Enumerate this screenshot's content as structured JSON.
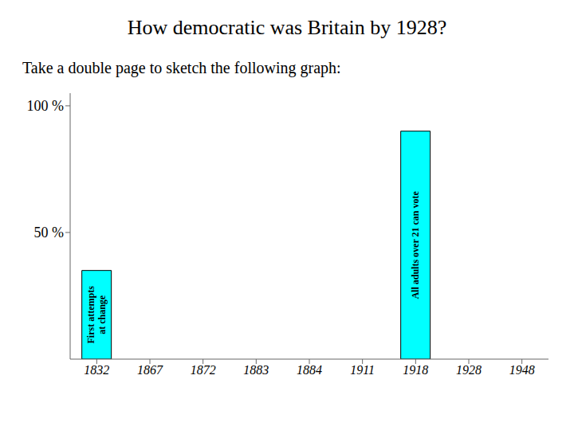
{
  "chart_data": {
    "type": "bar",
    "title": "How democratic was Britain by 1928?",
    "subtitle": "Take a double page to sketch the following graph:",
    "categories": [
      "1832",
      "1867",
      "1872",
      "1883",
      "1884",
      "1911",
      "1918",
      "1928",
      "1948"
    ],
    "values": [
      35,
      null,
      null,
      null,
      null,
      null,
      90,
      null,
      null
    ],
    "annotations": [
      {
        "category": "1832",
        "text": "First attempts\nat change"
      },
      {
        "category": "1918",
        "text": "All adults over 21 can vote"
      }
    ],
    "color": "#00ffff",
    "ylim": [
      0,
      105
    ],
    "yticks": [
      {
        "value": 50,
        "label": "50 %"
      },
      {
        "value": 100,
        "label": "100 %"
      }
    ],
    "grid": false
  }
}
